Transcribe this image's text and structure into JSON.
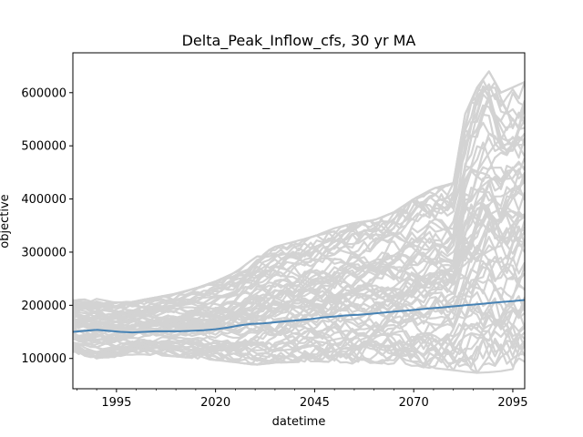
{
  "chart_data": {
    "type": "line",
    "title": "Delta_Peak_Inflow_cfs, 30 yr MA",
    "xlabel": "datetime",
    "ylabel": "objective",
    "xlim": [
      1984,
      2098
    ],
    "ylim": [
      43000,
      675000
    ],
    "x_ticks": [
      1995,
      2020,
      2045,
      2070,
      2095
    ],
    "y_ticks": [
      100000,
      200000,
      300000,
      400000,
      500000,
      600000
    ],
    "x_tick_labels": [
      "1995",
      "2020",
      "2045",
      "2070",
      "2095"
    ],
    "y_tick_labels": [
      "100000",
      "200000",
      "300000",
      "400000",
      "500000",
      "600000"
    ],
    "grid": false,
    "colors": {
      "ensemble": "#d3d3d3",
      "median": "#4682b4"
    },
    "median_series": {
      "x": [
        1984,
        1987,
        1990,
        1993,
        1996,
        1999,
        2002,
        2005,
        2008,
        2011,
        2014,
        2017,
        2020,
        2023,
        2026,
        2029,
        2032,
        2035,
        2038,
        2041,
        2044,
        2047,
        2050,
        2053,
        2056,
        2059,
        2062,
        2065,
        2068,
        2071,
        2074,
        2077,
        2080,
        2083,
        2086,
        2089,
        2092,
        2095,
        2098
      ],
      "values": [
        150000,
        152000,
        154000,
        152000,
        150000,
        149000,
        150000,
        151000,
        151000,
        151000,
        152000,
        153000,
        155000,
        158000,
        162000,
        165000,
        166000,
        168000,
        170000,
        172000,
        174000,
        177000,
        179000,
        181000,
        182000,
        184000,
        186000,
        188000,
        190000,
        192000,
        194000,
        196000,
        198000,
        200000,
        202000,
        204000,
        206000,
        208000,
        210000
      ]
    },
    "ensemble_envelope": {
      "x": [
        1984,
        1990,
        1995,
        2000,
        2005,
        2010,
        2015,
        2020,
        2025,
        2030,
        2035,
        2040,
        2045,
        2050,
        2055,
        2060,
        2065,
        2070,
        2075,
        2080,
        2083,
        2086,
        2089,
        2092,
        2095,
        2098
      ],
      "upper": [
        210000,
        212000,
        205000,
        208000,
        215000,
        222000,
        232000,
        245000,
        262000,
        290000,
        310000,
        320000,
        330000,
        345000,
        355000,
        360000,
        375000,
        400000,
        420000,
        430000,
        560000,
        610000,
        640000,
        600000,
        610000,
        620000
      ],
      "lower": [
        110000,
        100000,
        103000,
        108000,
        106000,
        104000,
        100000,
        97000,
        93000,
        88000,
        92000,
        93000,
        95000,
        93000,
        90000,
        92000,
        88000,
        84000,
        82000,
        78000,
        75000,
        73000,
        74000,
        76000,
        80000,
        85000
      ]
    }
  }
}
